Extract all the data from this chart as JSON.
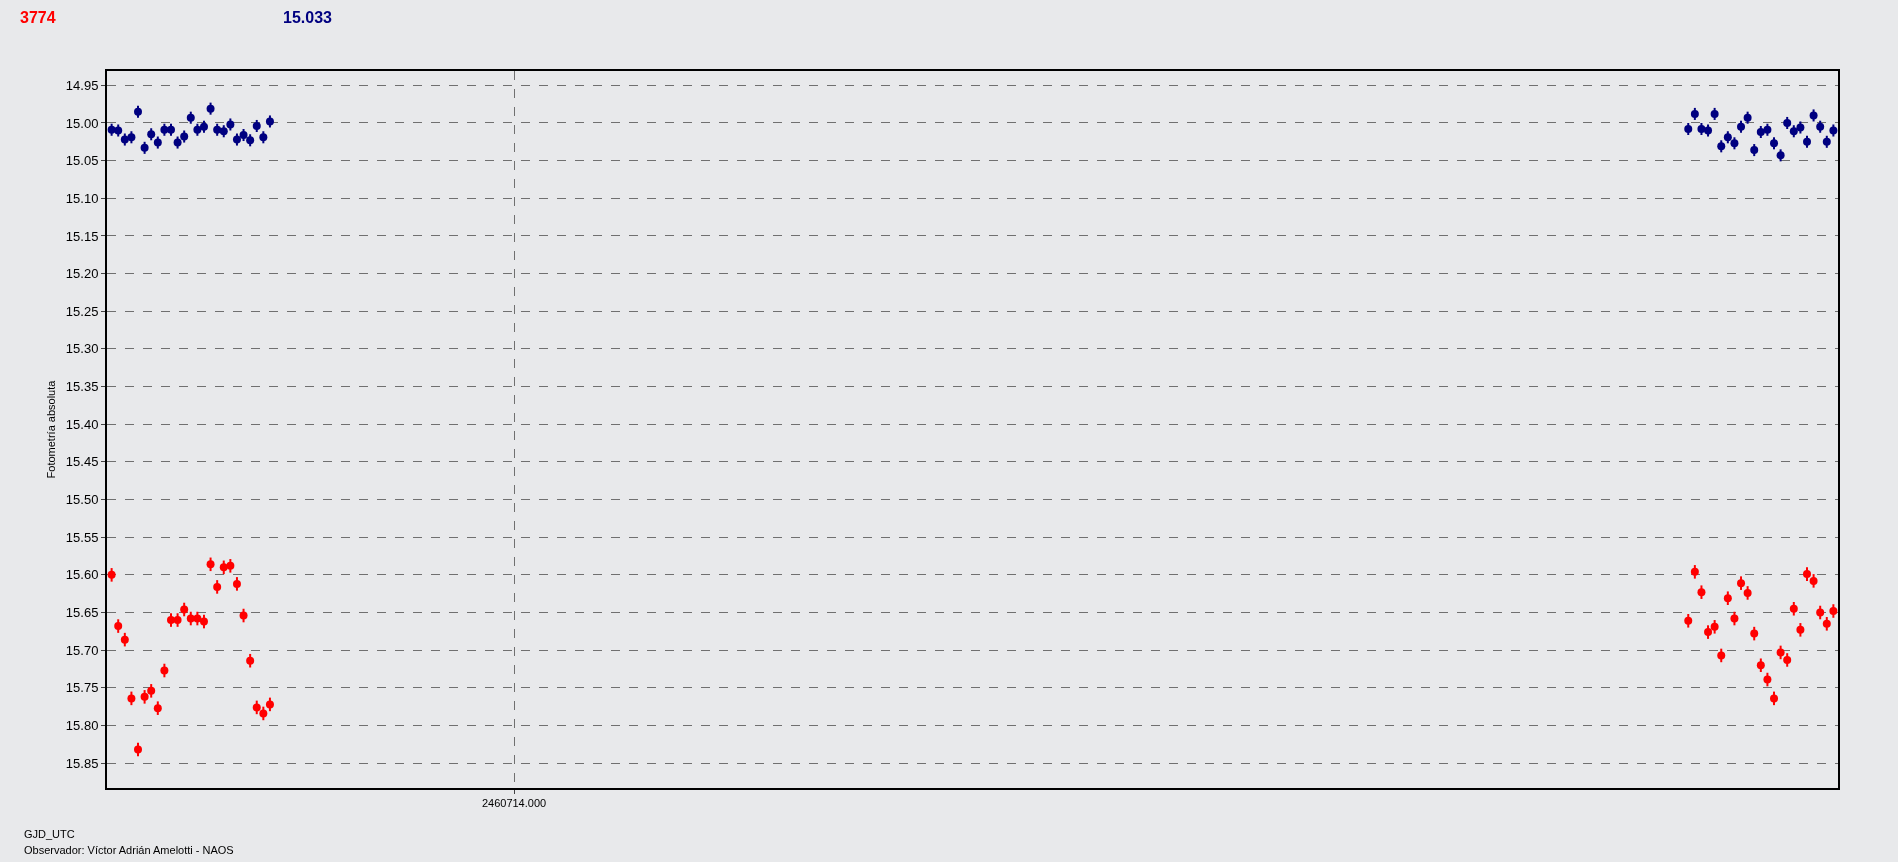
{
  "chart_data": {
    "type": "scatter",
    "xlabel": "GJD_UTC",
    "ylabel": "Fotometría absoluta",
    "annotations": [
      "Observador: Víctor Adrián Amelotti - NAOS"
    ],
    "categories": [
      null,
      null,
      null,
      null,
      null,
      null,
      null,
      null,
      null,
      null,
      null,
      null,
      null,
      null,
      null,
      null,
      null,
      null,
      null,
      null,
      null,
      null,
      null,
      null,
      null,
      null,
      null,
      null,
      null,
      null,
      null,
      null,
      null,
      null,
      null,
      null,
      null,
      null,
      null,
      null,
      null,
      null,
      null,
      null,
      null,
      null,
      null,
      null,
      null,
      null,
      null,
      null,
      null,
      null,
      null,
      null,
      null,
      null,
      null,
      null,
      null,
      "2460714.000",
      null,
      null,
      null,
      null,
      null,
      null,
      null,
      null,
      null,
      null,
      null,
      null,
      null,
      null,
      null,
      null,
      null,
      null,
      null,
      null,
      null,
      null,
      null,
      null,
      null,
      null,
      null,
      null,
      null,
      null,
      null,
      null,
      null,
      null,
      null,
      null,
      null,
      null,
      null,
      null,
      null,
      null,
      null,
      null,
      null,
      null,
      null,
      null,
      null,
      null,
      null,
      null,
      null,
      null,
      null,
      null,
      null,
      null,
      null,
      null,
      null,
      null,
      null,
      null,
      null,
      null,
      null,
      null,
      null,
      null,
      null,
      null,
      null,
      null,
      null,
      null,
      null,
      null,
      null,
      null,
      null,
      null,
      null,
      null,
      null,
      null,
      null,
      null,
      null,
      null,
      null,
      null,
      null,
      null,
      null,
      null,
      null,
      null,
      null,
      null,
      null,
      null,
      null,
      null,
      null,
      null,
      null,
      null,
      null,
      null,
      null,
      null,
      null,
      null,
      null,
      null,
      null,
      null,
      null,
      null,
      null,
      null,
      null,
      null,
      null,
      null,
      null,
      null,
      null,
      null,
      null,
      null,
      null,
      null,
      null,
      null,
      null,
      null,
      null,
      null,
      null,
      null,
      null,
      null,
      null,
      null,
      null,
      null,
      null,
      null,
      null,
      null,
      null,
      null,
      null,
      null,
      null,
      null,
      null,
      null,
      null,
      null,
      null,
      null,
      null,
      null,
      null,
      null,
      null,
      null,
      null,
      null,
      null,
      null,
      null,
      null,
      null,
      null,
      null,
      null,
      null,
      null,
      null,
      null,
      null,
      null,
      null,
      null,
      null,
      null,
      null,
      null,
      null,
      null,
      null,
      null,
      null,
      null,
      null,
      null
    ],
    "ylim": [
      15.883,
      14.931
    ],
    "yticks": [
      {
        "value": 14.95,
        "label": "14.95"
      },
      {
        "value": 15.0,
        "label": "15.00"
      },
      {
        "value": 15.05,
        "label": "15.05"
      },
      {
        "value": 15.1,
        "label": "15.10"
      },
      {
        "value": 15.15,
        "label": "15.15"
      },
      {
        "value": 15.2,
        "label": "15.20"
      },
      {
        "value": 15.25,
        "label": "15.25"
      },
      {
        "value": 15.3,
        "label": "15.30"
      },
      {
        "value": 15.35,
        "label": "15.35"
      },
      {
        "value": 15.4,
        "label": "15.40"
      },
      {
        "value": 15.45,
        "label": "15.45"
      },
      {
        "value": 15.5,
        "label": "15.50"
      },
      {
        "value": 15.55,
        "label": "15.55"
      },
      {
        "value": 15.6,
        "label": "15.60"
      },
      {
        "value": 15.65,
        "label": "15.65"
      },
      {
        "value": 15.7,
        "label": "15.70"
      },
      {
        "value": 15.75,
        "label": "15.75"
      },
      {
        "value": 15.8,
        "label": "15.80"
      },
      {
        "value": 15.85,
        "label": "15.85"
      }
    ],
    "grid": true,
    "legend": false,
    "marker": "circle",
    "series": [
      {
        "name": "3774",
        "color": "#ff0000",
        "values": [
          15.6,
          15.668,
          15.686,
          15.764,
          15.832,
          15.762,
          15.754,
          15.777,
          15.727,
          15.66,
          15.66,
          15.646,
          15.658,
          15.658,
          15.662,
          15.586,
          15.616,
          15.59,
          15.588,
          15.612,
          15.654,
          15.714,
          15.776,
          15.784,
          15.772,
          null,
          null,
          null,
          null,
          null,
          null,
          null,
          null,
          null,
          null,
          null,
          null,
          null,
          null,
          null,
          null,
          null,
          null,
          null,
          null,
          null,
          null,
          null,
          null,
          null,
          null,
          null,
          null,
          null,
          null,
          null,
          null,
          null,
          null,
          null,
          null,
          null,
          null,
          null,
          null,
          null,
          null,
          null,
          null,
          null,
          null,
          null,
          null,
          null,
          null,
          null,
          null,
          null,
          null,
          null,
          null,
          null,
          null,
          null,
          null,
          null,
          null,
          null,
          null,
          null,
          null,
          null,
          null,
          null,
          null,
          null,
          null,
          null,
          null,
          null,
          null,
          null,
          null,
          null,
          null,
          null,
          null,
          null,
          null,
          null,
          null,
          null,
          null,
          null,
          null,
          null,
          null,
          null,
          null,
          null,
          null,
          null,
          null,
          null,
          null,
          null,
          null,
          null,
          null,
          null,
          null,
          null,
          null,
          null,
          null,
          null,
          null,
          null,
          null,
          null,
          null,
          null,
          null,
          null,
          null,
          null,
          null,
          null,
          null,
          null,
          null,
          null,
          null,
          null,
          null,
          null,
          null,
          null,
          null,
          null,
          null,
          null,
          null,
          null,
          null,
          null,
          null,
          null,
          null,
          null,
          null,
          null,
          null,
          null,
          null,
          null,
          null,
          null,
          null,
          null,
          null,
          null,
          null,
          null,
          null,
          null,
          null,
          null,
          null,
          null,
          null,
          null,
          null,
          null,
          null,
          null,
          null,
          null,
          null,
          null,
          null,
          null,
          null,
          null,
          null,
          null,
          null,
          null,
          null,
          null,
          null,
          null,
          null,
          null,
          null,
          null,
          null,
          null,
          null,
          null,
          null,
          null,
          null,
          null,
          null,
          null,
          null,
          null,
          null,
          null,
          null,
          null,
          null,
          null,
          null,
          null,
          null,
          null,
          null,
          15.661,
          15.596,
          15.623,
          15.676,
          15.669,
          15.707,
          15.631,
          15.658,
          15.611,
          15.624,
          15.678,
          15.72,
          15.739,
          15.764,
          15.703,
          15.713,
          15.645,
          15.673,
          15.599,
          15.608,
          15.65,
          15.665,
          15.648
        ],
        "errors": [
          0.009,
          0.009,
          0.009,
          0.009,
          0.009,
          0.009,
          0.009,
          0.009,
          0.009,
          0.009,
          0.009,
          0.009,
          0.009,
          0.009,
          0.009,
          0.009,
          0.009,
          0.009,
          0.009,
          0.009,
          0.009,
          0.009,
          0.009,
          0.009,
          0.009,
          null,
          null,
          null,
          null,
          null,
          null,
          null,
          null,
          null,
          null,
          null,
          null,
          null,
          null,
          null,
          null,
          null,
          null,
          null,
          null,
          null,
          null,
          null,
          null,
          null,
          null,
          null,
          null,
          null,
          null,
          null,
          null,
          null,
          null,
          null,
          null,
          null,
          null,
          null,
          null,
          null,
          null,
          null,
          null,
          null,
          null,
          null,
          null,
          null,
          null,
          null,
          null,
          null,
          null,
          null,
          null,
          null,
          null,
          null,
          null,
          null,
          null,
          null,
          null,
          null,
          null,
          null,
          null,
          null,
          null,
          null,
          null,
          null,
          null,
          null,
          null,
          null,
          null,
          null,
          null,
          null,
          null,
          null,
          null,
          null,
          null,
          null,
          null,
          null,
          null,
          null,
          null,
          null,
          null,
          null,
          null,
          null,
          null,
          null,
          null,
          null,
          null,
          null,
          null,
          null,
          null,
          null,
          null,
          null,
          null,
          null,
          null,
          null,
          null,
          null,
          null,
          null,
          null,
          null,
          null,
          null,
          null,
          null,
          null,
          null,
          null,
          null,
          null,
          null,
          null,
          null,
          null,
          null,
          null,
          null,
          null,
          null,
          null,
          null,
          null,
          null,
          null,
          null,
          null,
          null,
          null,
          null,
          null,
          null,
          null,
          null,
          null,
          null,
          null,
          null,
          null,
          null,
          null,
          null,
          null,
          null,
          null,
          null,
          null,
          null,
          null,
          null,
          null,
          null,
          null,
          null,
          null,
          null,
          null,
          null,
          null,
          null,
          null,
          null,
          null,
          null,
          null,
          null,
          null,
          null,
          null,
          null,
          null,
          null,
          null,
          null,
          null,
          null,
          null,
          null,
          null,
          null,
          null,
          null,
          null,
          null,
          null,
          null,
          null,
          null,
          null,
          null,
          null,
          null,
          null,
          null,
          null,
          null,
          null,
          0.009,
          0.009,
          0.009,
          0.009,
          0.009,
          0.009,
          0.009,
          0.009,
          0.009,
          0.009,
          0.009,
          0.009,
          0.009,
          0.009,
          0.009,
          0.009,
          0.009,
          0.009,
          0.009,
          0.009,
          0.009,
          0.009,
          0.009
        ]
      },
      {
        "name": "15.033",
        "color": "#000080",
        "values": [
          15.009,
          15.01,
          15.022,
          15.019,
          14.985,
          15.033,
          15.015,
          15.026,
          15.009,
          15.009,
          15.026,
          15.018,
          14.993,
          15.009,
          15.005,
          14.981,
          15.009,
          15.011,
          15.002,
          15.022,
          15.016,
          15.023,
          15.004,
          15.019,
          14.998,
          null,
          null,
          null,
          null,
          null,
          null,
          null,
          null,
          null,
          null,
          null,
          null,
          null,
          null,
          null,
          null,
          null,
          null,
          null,
          null,
          null,
          null,
          null,
          null,
          null,
          null,
          null,
          null,
          null,
          null,
          null,
          null,
          null,
          null,
          null,
          null,
          null,
          null,
          null,
          null,
          null,
          null,
          null,
          null,
          null,
          null,
          null,
          null,
          null,
          null,
          null,
          null,
          null,
          null,
          null,
          null,
          null,
          null,
          null,
          null,
          null,
          null,
          null,
          null,
          null,
          null,
          null,
          null,
          null,
          null,
          null,
          null,
          null,
          null,
          null,
          null,
          null,
          null,
          null,
          null,
          null,
          null,
          null,
          null,
          null,
          null,
          null,
          null,
          null,
          null,
          null,
          null,
          null,
          null,
          null,
          null,
          null,
          null,
          null,
          null,
          null,
          null,
          null,
          null,
          null,
          null,
          null,
          null,
          null,
          null,
          null,
          null,
          null,
          null,
          null,
          null,
          null,
          null,
          null,
          null,
          null,
          null,
          null,
          null,
          null,
          null,
          null,
          null,
          null,
          null,
          null,
          null,
          null,
          null,
          null,
          null,
          null,
          null,
          null,
          null,
          null,
          null,
          null,
          null,
          null,
          null,
          null,
          null,
          null,
          null,
          null,
          null,
          null,
          null,
          null,
          null,
          null,
          null,
          null,
          null,
          null,
          null,
          null,
          null,
          null,
          null,
          null,
          null,
          null,
          null,
          null,
          null,
          null,
          null,
          null,
          null,
          null,
          null,
          null,
          null,
          null,
          null,
          null,
          null,
          null,
          null,
          null,
          null,
          null,
          null,
          null,
          null,
          null,
          null,
          null,
          null,
          null,
          null,
          null,
          null,
          null,
          null,
          null,
          null,
          null,
          null,
          null,
          null,
          null,
          null,
          null,
          null,
          null,
          null,
          15.008,
          14.988,
          15.008,
          15.01,
          14.988,
          15.031,
          15.019,
          15.027,
          15.005,
          14.993,
          15.036,
          15.012,
          15.009,
          15.027,
          15.043,
          15.0,
          15.011,
          15.006,
          15.025,
          14.99,
          15.005,
          15.025,
          15.01
        ],
        "errors": [
          0.008,
          0.008,
          0.008,
          0.008,
          0.008,
          0.008,
          0.008,
          0.008,
          0.008,
          0.008,
          0.008,
          0.008,
          0.008,
          0.008,
          0.008,
          0.008,
          0.008,
          0.008,
          0.008,
          0.008,
          0.008,
          0.008,
          0.008,
          0.008,
          0.008,
          null,
          null,
          null,
          null,
          null,
          null,
          null,
          null,
          null,
          null,
          null,
          null,
          null,
          null,
          null,
          null,
          null,
          null,
          null,
          null,
          null,
          null,
          null,
          null,
          null,
          null,
          null,
          null,
          null,
          null,
          null,
          null,
          null,
          null,
          null,
          null,
          null,
          null,
          null,
          null,
          null,
          null,
          null,
          null,
          null,
          null,
          null,
          null,
          null,
          null,
          null,
          null,
          null,
          null,
          null,
          null,
          null,
          null,
          null,
          null,
          null,
          null,
          null,
          null,
          null,
          null,
          null,
          null,
          null,
          null,
          null,
          null,
          null,
          null,
          null,
          null,
          null,
          null,
          null,
          null,
          null,
          null,
          null,
          null,
          null,
          null,
          null,
          null,
          null,
          null,
          null,
          null,
          null,
          null,
          null,
          null,
          null,
          null,
          null,
          null,
          null,
          null,
          null,
          null,
          null,
          null,
          null,
          null,
          null,
          null,
          null,
          null,
          null,
          null,
          null,
          null,
          null,
          null,
          null,
          null,
          null,
          null,
          null,
          null,
          null,
          null,
          null,
          null,
          null,
          null,
          null,
          null,
          null,
          null,
          null,
          null,
          null,
          null,
          null,
          null,
          null,
          null,
          null,
          null,
          null,
          null,
          null,
          null,
          null,
          null,
          null,
          null,
          null,
          null,
          null,
          null,
          null,
          null,
          null,
          null,
          null,
          null,
          null,
          null,
          null,
          null,
          null,
          null,
          null,
          null,
          null,
          null,
          null,
          null,
          null,
          null,
          null,
          null,
          null,
          null,
          null,
          null,
          null,
          null,
          null,
          null,
          null,
          null,
          null,
          null,
          null,
          null,
          null,
          null,
          null,
          null,
          null,
          null,
          null,
          null,
          null,
          null,
          null,
          null,
          null,
          null,
          null,
          null,
          null,
          null,
          null,
          null,
          null,
          null,
          0.008,
          0.008,
          0.008,
          0.008,
          0.008,
          0.008,
          0.008,
          0.008,
          0.008,
          0.008,
          0.008,
          0.008,
          0.008,
          0.008,
          0.008,
          0.008,
          0.008,
          0.008,
          0.008,
          0.008,
          0.008,
          0.008,
          0.008
        ]
      }
    ]
  }
}
